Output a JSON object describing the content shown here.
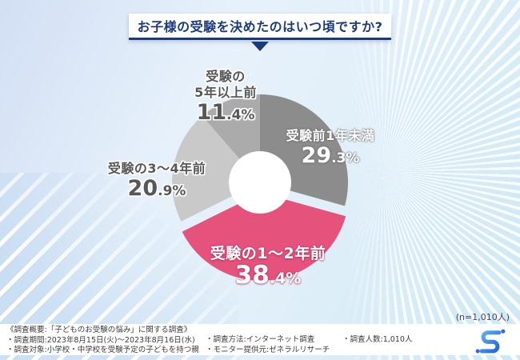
{
  "title": {
    "text": "お子様の受験を決めたのはいつ頃ですか?"
  },
  "sample_note": "(n=1,010人)",
  "chart_data": {
    "type": "pie",
    "donut": true,
    "title": "お子様の受験を決めたのはいつ頃ですか?",
    "start_angle_deg": 0,
    "direction": "clockwise",
    "total_respondents": "1,010",
    "slices": [
      {
        "label": "受験前1年未満",
        "label_lines": [
          "受験前1年未満"
        ],
        "value": 29.3,
        "display": "29.3%",
        "color": "#8c8c8c",
        "label_placement": "inside",
        "exploded": false
      },
      {
        "label": "受験の1〜2年前",
        "label_lines": [
          "受験の1〜2年前"
        ],
        "value": 38.4,
        "display": "38.4%",
        "color": "#e5527b",
        "label_placement": "inside",
        "exploded": true
      },
      {
        "label": "受験の3〜4年前",
        "label_lines": [
          "受験の3〜4年前"
        ],
        "value": 20.9,
        "display": "20.9%",
        "color": "#c9c9c9",
        "label_placement": "outside",
        "exploded": false
      },
      {
        "label": "受験の5年以上前",
        "label_lines": [
          "受験の",
          "5年以上前"
        ],
        "value": 11.4,
        "display": "11.4%",
        "color": "#ababab",
        "label_placement": "outside",
        "exploded": false
      }
    ]
  },
  "footer": {
    "col1": [
      "《調査概要:「子どものお受験の悩み」に関する調査》",
      "・調査期間:2023年8月15日(火)〜2023年8月16日(水)",
      "・調査対象:小学校・中学校を受験予定の子どもを持つ親"
    ],
    "col2": [
      "・調査方法:インターネット調査",
      "・モニター提供元:ゼネラルリサーチ"
    ],
    "col3": [
      "・調査人数:1,010人"
    ]
  },
  "colors": {
    "accent_pink": "#e5527b",
    "title_navy": "#1b3a7d",
    "logo_blue_light": "#5fadf6",
    "logo_blue_dark": "#1f64de"
  }
}
